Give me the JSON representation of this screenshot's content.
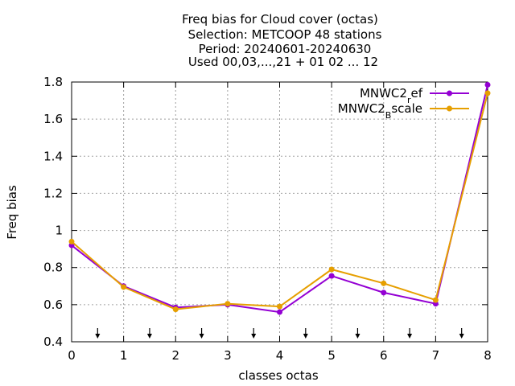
{
  "chart_data": {
    "type": "line",
    "title_lines": [
      "Freq bias  for Cloud cover (octas)",
      "Selection: METCOOP     48 stations",
      "Period: 20240601-20240630",
      "Used 00,03,...,21 + 01 02 ... 12"
    ],
    "xlabel": "classes octas",
    "ylabel": "Freq bias",
    "x": [
      0,
      1,
      2,
      3,
      4,
      5,
      6,
      7,
      8
    ],
    "xlim": [
      0,
      8
    ],
    "ylim": [
      0.4,
      1.8
    ],
    "xticks": [
      "0",
      "1",
      "2",
      "3",
      "4",
      "5",
      "6",
      "7",
      "8"
    ],
    "yticks": [
      "0.4",
      "0.6",
      "0.8",
      "1",
      "1.2",
      "1.4",
      "1.6",
      "1.8"
    ],
    "grid": true,
    "legend_position": "top-right",
    "series": [
      {
        "name_main": "MNWC2",
        "name_sub": "r",
        "name_tail": "ef",
        "color": "#9400d3",
        "values": [
          0.92,
          0.7,
          0.585,
          0.6,
          0.56,
          0.755,
          0.665,
          0.605,
          1.785
        ]
      },
      {
        "name_main": "MNWC2",
        "name_sub": "B",
        "name_tail": "scale",
        "color": "#e69f00",
        "values": [
          0.94,
          0.695,
          0.575,
          0.605,
          0.59,
          0.79,
          0.715,
          0.625,
          1.74
        ]
      }
    ],
    "arrow_markers_x": [
      0.5,
      1.5,
      2.5,
      3.5,
      4.5,
      5.5,
      6.5,
      7.5
    ]
  }
}
